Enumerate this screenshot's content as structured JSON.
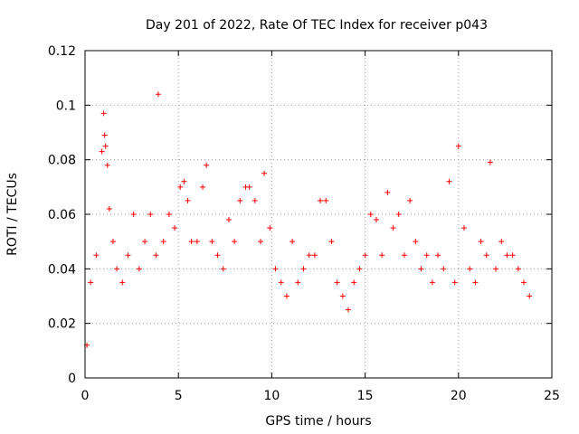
{
  "chart_data": {
    "type": "scatter",
    "title": "Day 201 of 2022, Rate Of TEC Index for receiver p043",
    "xlabel": "GPS time / hours",
    "ylabel": "ROTI / TECUs",
    "xlim": [
      0,
      25
    ],
    "ylim": [
      0,
      0.12
    ],
    "xticks": [
      0,
      5,
      10,
      15,
      20,
      25
    ],
    "xtick_labels": [
      "0",
      "5",
      "10",
      "15",
      "20",
      "25"
    ],
    "yticks": [
      0,
      0.02,
      0.04,
      0.06,
      0.08,
      0.1,
      0.12
    ],
    "ytick_labels": [
      "0",
      "0.02",
      "0.04",
      "0.06",
      "0.08",
      "0.1",
      "0.12"
    ],
    "grid": true,
    "legend": "none",
    "marker": "plus",
    "color": "#ff0000",
    "series": [
      {
        "x": [
          0.1,
          0.3,
          0.6,
          0.9,
          1.0,
          1.05,
          1.1,
          1.2,
          1.3,
          1.5,
          1.7,
          2.0,
          2.3,
          2.6,
          2.9,
          3.2,
          3.5,
          3.8,
          3.92,
          4.2,
          4.5,
          4.8,
          5.1,
          5.3,
          5.5,
          5.7,
          6.0,
          6.3,
          6.5,
          6.8,
          7.1,
          7.4,
          7.7,
          8.0,
          8.3,
          8.6,
          8.8,
          9.1,
          9.4,
          9.6,
          9.9,
          10.2,
          10.5,
          10.8,
          11.1,
          11.4,
          11.7,
          12.0,
          12.3,
          12.6,
          12.9,
          13.2,
          13.5,
          13.8,
          14.1,
          14.4,
          14.7,
          15.0,
          15.3,
          15.6,
          15.9,
          16.2,
          16.5,
          16.8,
          17.1,
          17.4,
          17.7,
          18.0,
          18.3,
          18.6,
          18.9,
          19.2,
          19.5,
          19.8,
          20.0,
          20.3,
          20.6,
          20.9,
          21.2,
          21.5,
          21.7,
          22.0,
          22.3,
          22.6,
          22.9,
          23.2,
          23.5,
          23.8
        ],
        "y": [
          0.012,
          0.035,
          0.045,
          0.083,
          0.097,
          0.089,
          0.085,
          0.078,
          0.062,
          0.05,
          0.04,
          0.035,
          0.045,
          0.06,
          0.04,
          0.05,
          0.06,
          0.045,
          0.104,
          0.05,
          0.06,
          0.055,
          0.07,
          0.072,
          0.065,
          0.05,
          0.05,
          0.07,
          0.078,
          0.05,
          0.045,
          0.04,
          0.058,
          0.05,
          0.065,
          0.07,
          0.07,
          0.065,
          0.05,
          0.075,
          0.055,
          0.04,
          0.035,
          0.03,
          0.05,
          0.035,
          0.04,
          0.045,
          0.045,
          0.065,
          0.065,
          0.05,
          0.035,
          0.03,
          0.025,
          0.035,
          0.04,
          0.045,
          0.06,
          0.058,
          0.045,
          0.068,
          0.055,
          0.06,
          0.045,
          0.065,
          0.05,
          0.04,
          0.045,
          0.035,
          0.045,
          0.04,
          0.072,
          0.035,
          0.085,
          0.055,
          0.04,
          0.035,
          0.05,
          0.045,
          0.079,
          0.04,
          0.05,
          0.045,
          0.045,
          0.04,
          0.035,
          0.03
        ]
      }
    ]
  }
}
